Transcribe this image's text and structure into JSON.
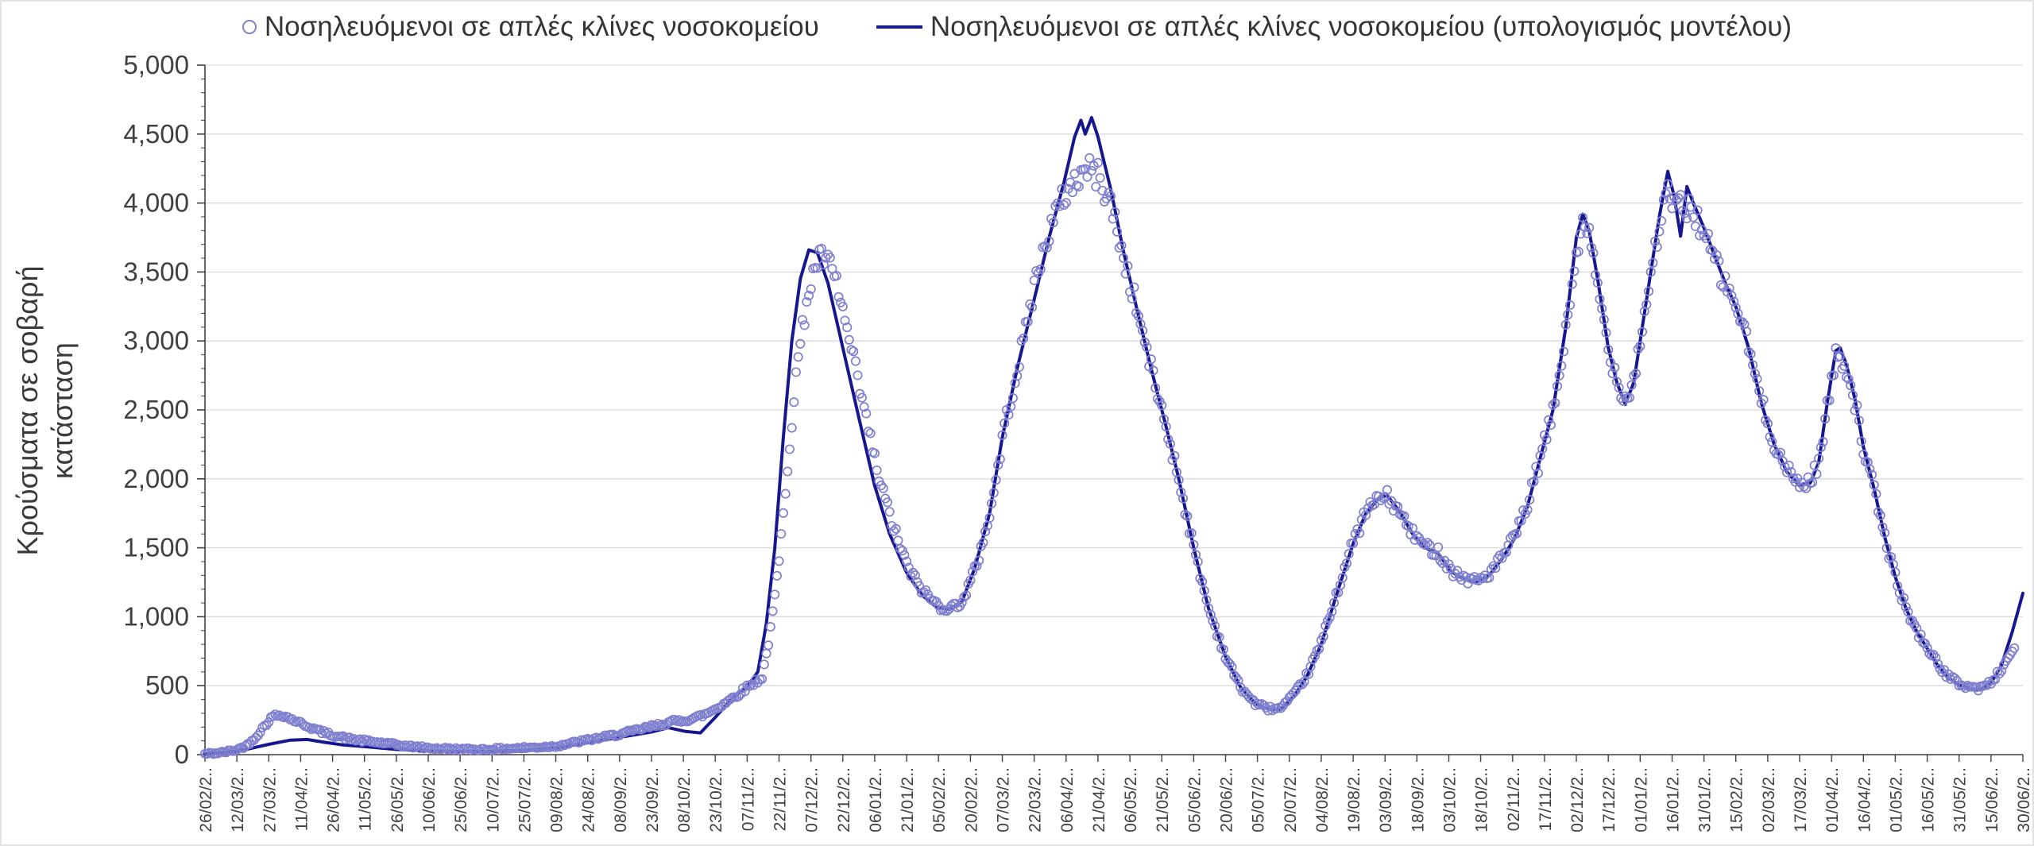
{
  "chart_data": {
    "type": "line+scatter",
    "ylabel": "Κρούσματα σε σοβαρή κατάσταση",
    "ylim": [
      0,
      5000
    ],
    "y_ticks": [
      0,
      500,
      1000,
      1500,
      2000,
      2500,
      3000,
      3500,
      4000,
      4500,
      5000
    ],
    "y_tick_labels": [
      "0",
      "500",
      "1,000",
      "1,500",
      "2,000",
      "2,500",
      "3,000",
      "3,500",
      "4,000",
      "4,500",
      "5,000"
    ],
    "x_tick_interval_days": 15,
    "x_range_days": [
      0,
      855
    ],
    "x_tick_labels": [
      "26/02/2..",
      "12/03/2..",
      "27/03/2..",
      "11/04/2..",
      "26/04/2..",
      "11/05/2..",
      "26/05/2..",
      "10/06/2..",
      "25/06/2..",
      "10/07/2..",
      "25/07/2..",
      "09/08/2..",
      "24/08/2..",
      "08/09/2..",
      "23/09/2..",
      "08/10/2..",
      "23/10/2..",
      "07/11/2..",
      "22/11/2..",
      "07/12/2..",
      "22/12/2..",
      "06/01/2..",
      "21/01/2..",
      "05/02/2..",
      "20/02/2..",
      "07/03/2..",
      "22/03/2..",
      "06/04/2..",
      "21/04/2..",
      "06/05/2..",
      "21/05/2..",
      "05/06/2..",
      "20/06/2..",
      "05/07/2..",
      "20/07/2..",
      "04/08/2..",
      "19/08/2..",
      "03/09/2..",
      "18/09/2..",
      "03/10/2..",
      "18/10/2..",
      "02/11/2..",
      "17/11/2..",
      "02/12/2..",
      "17/12/2..",
      "01/01/2..",
      "16/01/2..",
      "31/01/2..",
      "15/02/2..",
      "02/03/2..",
      "17/03/2..",
      "01/04/2..",
      "16/04/2..",
      "01/05/2..",
      "16/05/2..",
      "31/05/2..",
      "15/06/2..",
      "30/06/2.."
    ],
    "style": {
      "grid_color": "#d9d9d9",
      "axis_color": "#404040",
      "text_color": "#404040"
    },
    "grid": true,
    "legend_position": "top",
    "series": [
      {
        "name": "Νοσηλευόμενοι σε απλές κλίνες νοσοκομείου",
        "type": "scatter",
        "color": "#7f7fd0",
        "points": [
          [
            0,
            5
          ],
          [
            8,
            15
          ],
          [
            15,
            35
          ],
          [
            20,
            70
          ],
          [
            24,
            130
          ],
          [
            28,
            210
          ],
          [
            32,
            280
          ],
          [
            36,
            290
          ],
          [
            40,
            262
          ],
          [
            45,
            228
          ],
          [
            50,
            195
          ],
          [
            55,
            165
          ],
          [
            60,
            142
          ],
          [
            68,
            115
          ],
          [
            76,
            98
          ],
          [
            85,
            82
          ],
          [
            95,
            62
          ],
          [
            105,
            48
          ],
          [
            115,
            42
          ],
          [
            125,
            38
          ],
          [
            135,
            40
          ],
          [
            145,
            46
          ],
          [
            155,
            52
          ],
          [
            165,
            62
          ],
          [
            175,
            92
          ],
          [
            185,
            120
          ],
          [
            195,
            148
          ],
          [
            205,
            185
          ],
          [
            213,
            215
          ],
          [
            220,
            240
          ],
          [
            228,
            255
          ],
          [
            235,
            290
          ],
          [
            242,
            350
          ],
          [
            250,
            430
          ],
          [
            256,
            500
          ],
          [
            262,
            560
          ],
          [
            266,
            900
          ],
          [
            270,
            1400
          ],
          [
            274,
            2100
          ],
          [
            278,
            2750
          ],
          [
            283,
            3300
          ],
          [
            288,
            3580
          ],
          [
            292,
            3600
          ],
          [
            297,
            3420
          ],
          [
            303,
            3000
          ],
          [
            310,
            2500
          ],
          [
            317,
            2000
          ],
          [
            324,
            1640
          ],
          [
            331,
            1340
          ],
          [
            338,
            1180
          ],
          [
            345,
            1080
          ],
          [
            351,
            1060
          ],
          [
            357,
            1130
          ],
          [
            363,
            1380
          ],
          [
            370,
            1800
          ],
          [
            376,
            2380
          ],
          [
            383,
            2850
          ],
          [
            390,
            3400
          ],
          [
            397,
            3800
          ],
          [
            404,
            4050
          ],
          [
            410,
            4180
          ],
          [
            415,
            4250
          ],
          [
            420,
            4200
          ],
          [
            426,
            4000
          ],
          [
            432,
            3600
          ],
          [
            438,
            3250
          ],
          [
            445,
            2800
          ],
          [
            452,
            2380
          ],
          [
            458,
            2000
          ],
          [
            465,
            1500
          ],
          [
            472,
            1060
          ],
          [
            480,
            710
          ],
          [
            487,
            490
          ],
          [
            494,
            370
          ],
          [
            500,
            335
          ],
          [
            506,
            335
          ],
          [
            512,
            430
          ],
          [
            518,
            570
          ],
          [
            525,
            810
          ],
          [
            532,
            1160
          ],
          [
            540,
            1540
          ],
          [
            546,
            1760
          ],
          [
            552,
            1860
          ],
          [
            556,
            1870
          ],
          [
            562,
            1750
          ],
          [
            568,
            1600
          ],
          [
            574,
            1510
          ],
          [
            580,
            1470
          ],
          [
            586,
            1340
          ],
          [
            592,
            1280
          ],
          [
            598,
            1260
          ],
          [
            604,
            1310
          ],
          [
            610,
            1430
          ],
          [
            616,
            1580
          ],
          [
            622,
            1810
          ],
          [
            628,
            2150
          ],
          [
            634,
            2480
          ],
          [
            640,
            3050
          ],
          [
            645,
            3650
          ],
          [
            648,
            3820
          ],
          [
            651,
            3750
          ],
          [
            655,
            3400
          ],
          [
            660,
            2950
          ],
          [
            664,
            2720
          ],
          [
            668,
            2580
          ],
          [
            672,
            2720
          ],
          [
            676,
            3100
          ],
          [
            680,
            3480
          ],
          [
            684,
            3850
          ],
          [
            688,
            4050
          ],
          [
            692,
            4000
          ],
          [
            696,
            3950
          ],
          [
            700,
            3960
          ],
          [
            705,
            3760
          ],
          [
            710,
            3590
          ],
          [
            715,
            3400
          ],
          [
            720,
            3270
          ],
          [
            726,
            2960
          ],
          [
            732,
            2560
          ],
          [
            738,
            2260
          ],
          [
            744,
            2060
          ],
          [
            750,
            1960
          ],
          [
            755,
            1980
          ],
          [
            759,
            2120
          ],
          [
            763,
            2520
          ],
          [
            767,
            2880
          ],
          [
            769,
            2900
          ],
          [
            772,
            2800
          ],
          [
            776,
            2560
          ],
          [
            780,
            2220
          ],
          [
            785,
            1920
          ],
          [
            790,
            1580
          ],
          [
            795,
            1290
          ],
          [
            800,
            1060
          ],
          [
            805,
            900
          ],
          [
            810,
            780
          ],
          [
            815,
            655
          ],
          [
            820,
            565
          ],
          [
            825,
            515
          ],
          [
            830,
            490
          ],
          [
            835,
            480
          ],
          [
            840,
            525
          ],
          [
            845,
            620
          ],
          [
            851,
            780
          ]
        ]
      },
      {
        "name": "Νοσηλευόμενοι σε απλές κλίνες νοσοκομείου (υπολογισμός μοντέλου)",
        "type": "line",
        "color": "#16168f",
        "points": [
          [
            0,
            5
          ],
          [
            10,
            15
          ],
          [
            20,
            40
          ],
          [
            30,
            75
          ],
          [
            40,
            105
          ],
          [
            48,
            110
          ],
          [
            56,
            90
          ],
          [
            65,
            70
          ],
          [
            75,
            58
          ],
          [
            90,
            38
          ],
          [
            105,
            27
          ],
          [
            120,
            23
          ],
          [
            135,
            25
          ],
          [
            150,
            32
          ],
          [
            165,
            48
          ],
          [
            180,
            85
          ],
          [
            195,
            125
          ],
          [
            210,
            165
          ],
          [
            218,
            195
          ],
          [
            226,
            168
          ],
          [
            233,
            158
          ],
          [
            240,
            270
          ],
          [
            248,
            410
          ],
          [
            255,
            495
          ],
          [
            260,
            600
          ],
          [
            264,
            950
          ],
          [
            268,
            1500
          ],
          [
            272,
            2300
          ],
          [
            276,
            3000
          ],
          [
            280,
            3450
          ],
          [
            284,
            3660
          ],
          [
            288,
            3640
          ],
          [
            293,
            3420
          ],
          [
            300,
            2950
          ],
          [
            307,
            2480
          ],
          [
            315,
            1950
          ],
          [
            322,
            1600
          ],
          [
            330,
            1320
          ],
          [
            337,
            1160
          ],
          [
            344,
            1070
          ],
          [
            350,
            1055
          ],
          [
            356,
            1110
          ],
          [
            362,
            1350
          ],
          [
            369,
            1750
          ],
          [
            375,
            2300
          ],
          [
            382,
            2800
          ],
          [
            390,
            3300
          ],
          [
            397,
            3750
          ],
          [
            404,
            4150
          ],
          [
            409,
            4480
          ],
          [
            412,
            4600
          ],
          [
            414,
            4500
          ],
          [
            417,
            4620
          ],
          [
            420,
            4480
          ],
          [
            426,
            4100
          ],
          [
            432,
            3650
          ],
          [
            438,
            3250
          ],
          [
            445,
            2800
          ],
          [
            452,
            2380
          ],
          [
            458,
            2000
          ],
          [
            465,
            1500
          ],
          [
            472,
            1060
          ],
          [
            480,
            710
          ],
          [
            487,
            490
          ],
          [
            494,
            370
          ],
          [
            500,
            330
          ],
          [
            506,
            330
          ],
          [
            512,
            420
          ],
          [
            518,
            560
          ],
          [
            525,
            800
          ],
          [
            532,
            1150
          ],
          [
            540,
            1530
          ],
          [
            546,
            1750
          ],
          [
            552,
            1860
          ],
          [
            556,
            1880
          ],
          [
            562,
            1760
          ],
          [
            568,
            1600
          ],
          [
            574,
            1500
          ],
          [
            580,
            1460
          ],
          [
            586,
            1330
          ],
          [
            592,
            1270
          ],
          [
            598,
            1255
          ],
          [
            604,
            1300
          ],
          [
            610,
            1420
          ],
          [
            616,
            1570
          ],
          [
            622,
            1800
          ],
          [
            628,
            2150
          ],
          [
            634,
            2500
          ],
          [
            640,
            3100
          ],
          [
            645,
            3750
          ],
          [
            648,
            3920
          ],
          [
            651,
            3800
          ],
          [
            655,
            3450
          ],
          [
            660,
            2950
          ],
          [
            664,
            2700
          ],
          [
            668,
            2540
          ],
          [
            672,
            2700
          ],
          [
            676,
            3100
          ],
          [
            680,
            3500
          ],
          [
            684,
            3900
          ],
          [
            688,
            4230
          ],
          [
            691,
            4050
          ],
          [
            694,
            3760
          ],
          [
            697,
            4120
          ],
          [
            700,
            4000
          ],
          [
            705,
            3820
          ],
          [
            710,
            3620
          ],
          [
            715,
            3420
          ],
          [
            720,
            3250
          ],
          [
            726,
            2950
          ],
          [
            732,
            2550
          ],
          [
            738,
            2250
          ],
          [
            744,
            2050
          ],
          [
            750,
            1950
          ],
          [
            755,
            1970
          ],
          [
            759,
            2120
          ],
          [
            763,
            2550
          ],
          [
            767,
            2930
          ],
          [
            769,
            2950
          ],
          [
            772,
            2830
          ],
          [
            776,
            2580
          ],
          [
            780,
            2230
          ],
          [
            785,
            1930
          ],
          [
            790,
            1580
          ],
          [
            795,
            1290
          ],
          [
            800,
            1060
          ],
          [
            805,
            895
          ],
          [
            810,
            770
          ],
          [
            815,
            645
          ],
          [
            820,
            555
          ],
          [
            825,
            505
          ],
          [
            830,
            478
          ],
          [
            835,
            470
          ],
          [
            840,
            520
          ],
          [
            845,
            650
          ],
          [
            850,
            890
          ],
          [
            855,
            1170
          ]
        ]
      }
    ],
    "scatter_render": {
      "sample_step_days": 1,
      "jitter_abs": 9,
      "jitter_rel": 0.022,
      "seed": 42,
      "marker_radius": 5.2
    }
  }
}
